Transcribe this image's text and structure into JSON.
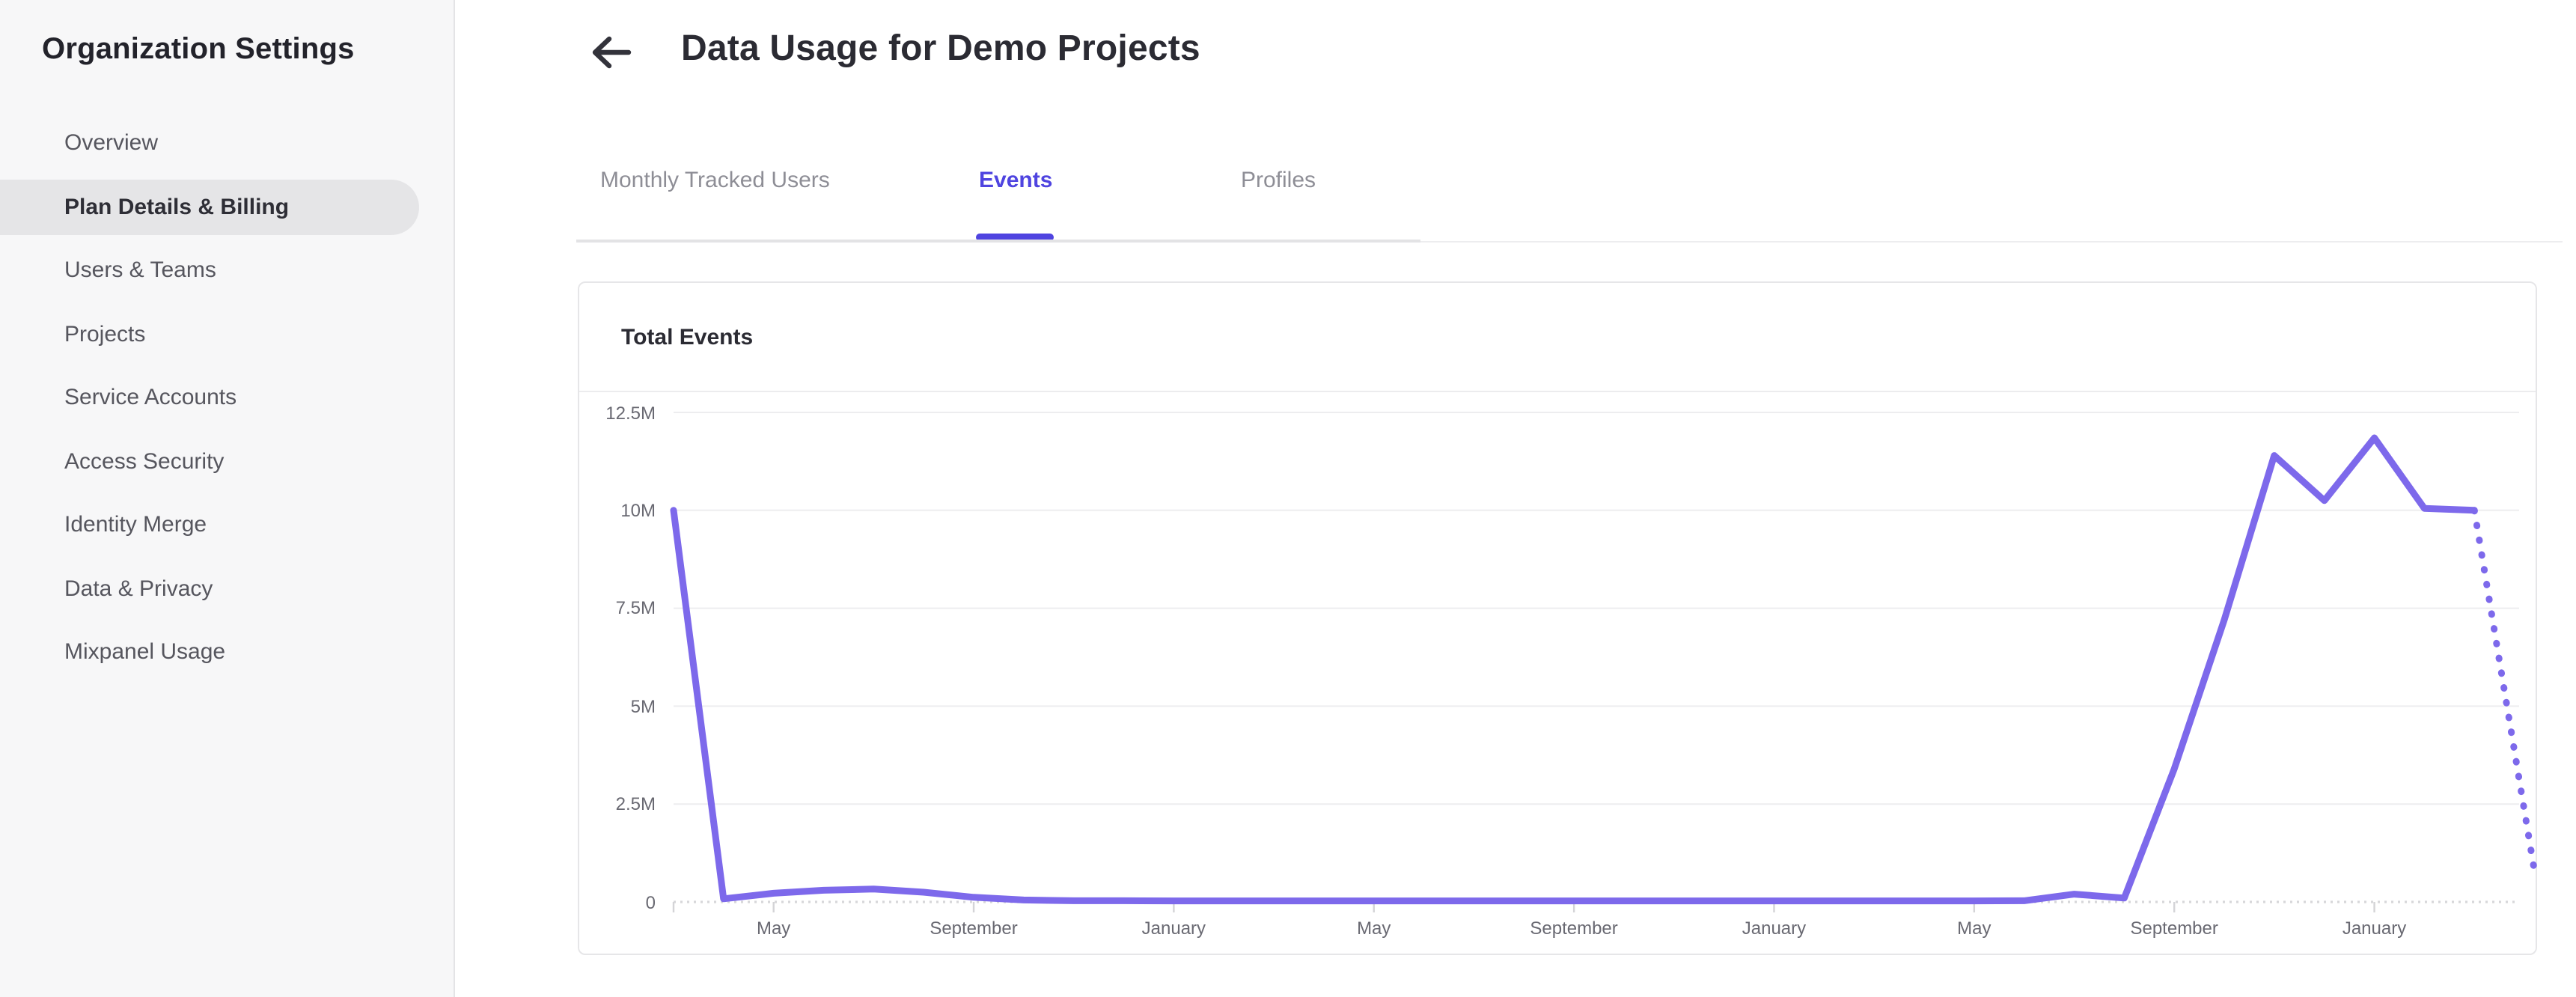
{
  "sidebar": {
    "title": "Organization Settings",
    "items": [
      {
        "label": "Overview",
        "active": false
      },
      {
        "label": "Plan Details & Billing",
        "active": true
      },
      {
        "label": "Users & Teams",
        "active": false
      },
      {
        "label": "Projects",
        "active": false
      },
      {
        "label": "Service Accounts",
        "active": false
      },
      {
        "label": "Access Security",
        "active": false
      },
      {
        "label": "Identity Merge",
        "active": false
      },
      {
        "label": "Data & Privacy",
        "active": false
      },
      {
        "label": "Mixpanel Usage",
        "active": false
      }
    ]
  },
  "header": {
    "title": "Data Usage for Demo Projects"
  },
  "tabs": [
    {
      "label": "Monthly Tracked Users",
      "active": false
    },
    {
      "label": "Events",
      "active": true
    },
    {
      "label": "Profiles",
      "active": false
    }
  ],
  "card": {
    "title": "Total Events"
  },
  "colors": {
    "accent": "#4F44E0",
    "line": "#7D69EB",
    "gridline": "#EDEDEF",
    "axis_dotted": "#D7D7DA",
    "tick": "#D4D4D7",
    "sidebar_bg": "#F7F7F8",
    "sidebar_active_bg": "#E5E5E7"
  },
  "chart_data": {
    "type": "line",
    "title": "Total Events",
    "xlabel": "",
    "ylabel": "",
    "x_unit": "month",
    "ylim": [
      0,
      12500000
    ],
    "grid": "horizontal",
    "legend": "none",
    "y_ticks": [
      {
        "label": "12.5M",
        "value": 12500000
      },
      {
        "label": "10M",
        "value": 10000000
      },
      {
        "label": "7.5M",
        "value": 7500000
      },
      {
        "label": "5M",
        "value": 5000000
      },
      {
        "label": "2.5M",
        "value": 2500000
      },
      {
        "label": "0",
        "value": 0
      }
    ],
    "x_ticks": [
      {
        "label": "May",
        "month_index": 2
      },
      {
        "label": "September",
        "month_index": 6
      },
      {
        "label": "January",
        "month_index": 10
      },
      {
        "label": "May",
        "month_index": 14
      },
      {
        "label": "September",
        "month_index": 18
      },
      {
        "label": "January",
        "month_index": 22
      },
      {
        "label": "May",
        "month_index": 26
      },
      {
        "label": "September",
        "month_index": 30
      },
      {
        "label": "January",
        "month_index": 34
      }
    ],
    "series": [
      {
        "name": "Total Events",
        "style": "solid",
        "points": [
          [
            0,
            10000000
          ],
          [
            1,
            80000
          ],
          [
            2,
            220000
          ],
          [
            3,
            300000
          ],
          [
            4,
            330000
          ],
          [
            5,
            250000
          ],
          [
            6,
            120000
          ],
          [
            7,
            50000
          ],
          [
            8,
            30000
          ],
          [
            9,
            30000
          ],
          [
            10,
            25000
          ],
          [
            11,
            25000
          ],
          [
            12,
            25000
          ],
          [
            13,
            25000
          ],
          [
            14,
            25000
          ],
          [
            15,
            25000
          ],
          [
            16,
            25000
          ],
          [
            17,
            25000
          ],
          [
            18,
            25000
          ],
          [
            19,
            25000
          ],
          [
            20,
            25000
          ],
          [
            21,
            25000
          ],
          [
            22,
            25000
          ],
          [
            23,
            25000
          ],
          [
            24,
            25000
          ],
          [
            25,
            25000
          ],
          [
            26,
            25000
          ],
          [
            27,
            30000
          ],
          [
            28,
            200000
          ],
          [
            29,
            100000
          ],
          [
            30,
            3400000
          ],
          [
            31,
            7200000
          ],
          [
            32,
            11400000
          ],
          [
            33,
            10250000
          ],
          [
            34,
            11850000
          ],
          [
            35,
            10050000
          ],
          [
            36,
            10000000
          ]
        ]
      },
      {
        "name": "Total Events (incomplete period, projected)",
        "style": "dotted",
        "points": [
          [
            36,
            10000000
          ],
          [
            37.2,
            800000
          ]
        ]
      }
    ]
  }
}
